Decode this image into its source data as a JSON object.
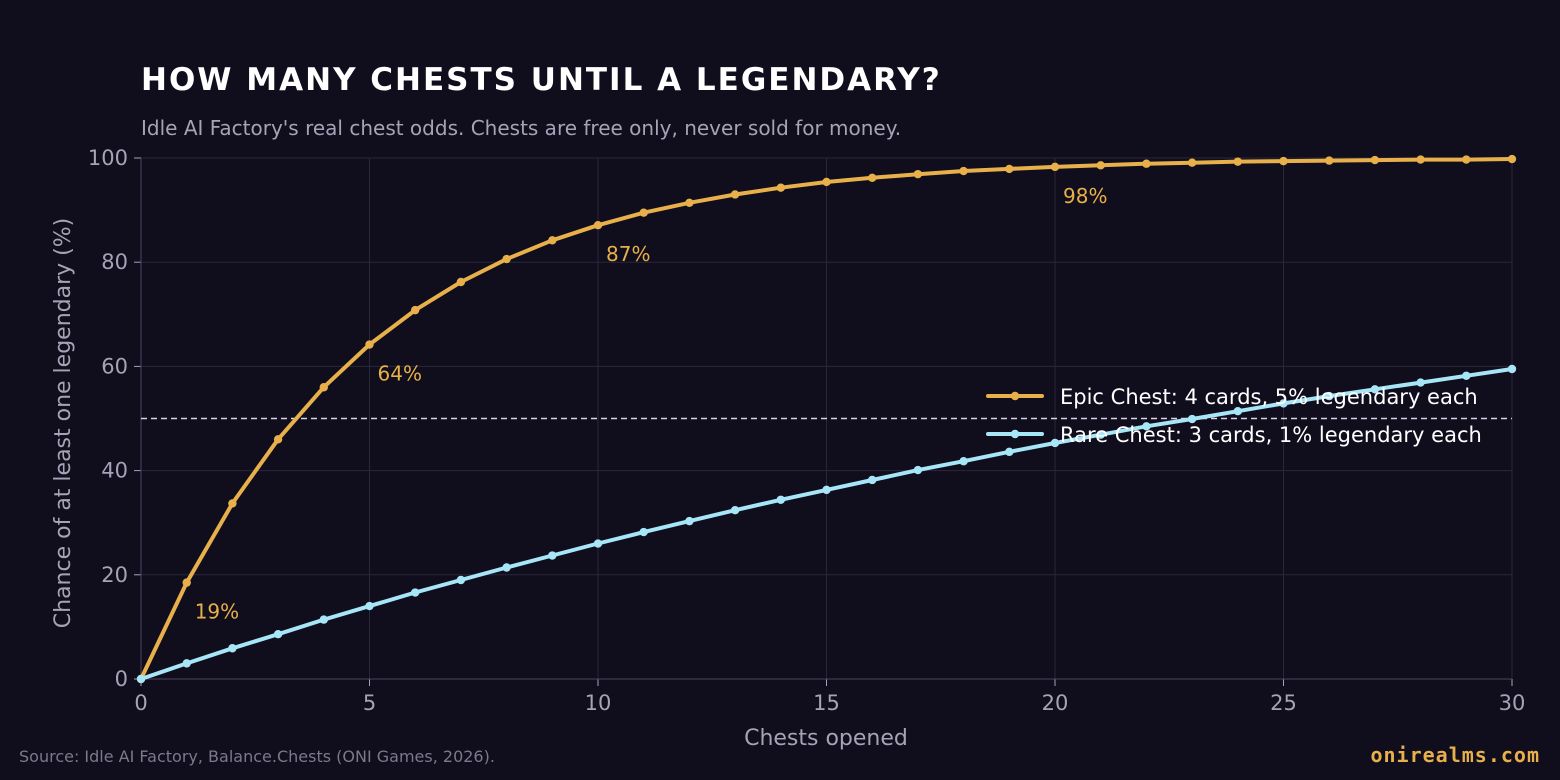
{
  "colors": {
    "background": "#100d1d",
    "epic": "#e8b04a",
    "rare": "#a7e6f7",
    "grid": "#2b273b",
    "text": "#a7a2b6"
  },
  "page": {
    "title": "HOW MANY CHESTS UNTIL A LEGENDARY?",
    "subtitle": "Idle AI Factory's real chest odds. Chests are free only, never sold for money.",
    "source": "Source: Idle AI Factory, Balance.Chests (ONI Games, 2026).",
    "brand": "onirealms.com"
  },
  "chart_data": {
    "type": "line",
    "xlabel": "Chests opened",
    "ylabel": "Chance of at least one legendary (%)",
    "xlim": [
      0,
      30
    ],
    "ylim": [
      0,
      100
    ],
    "xticks": [
      "0",
      "5",
      "10",
      "15",
      "20",
      "25",
      "30"
    ],
    "yticks": [
      "0",
      "20",
      "40",
      "60",
      "80",
      "100"
    ],
    "grid": true,
    "legend_position": "right",
    "reference_line": {
      "y": 50,
      "style": "dashed"
    },
    "x": [
      0,
      1,
      2,
      3,
      4,
      5,
      6,
      7,
      8,
      9,
      10,
      11,
      12,
      13,
      14,
      15,
      16,
      17,
      18,
      19,
      20,
      21,
      22,
      23,
      24,
      25,
      26,
      27,
      28,
      29,
      30
    ],
    "series": [
      {
        "name": "Epic Chest: 4 cards, 5% legendary each",
        "color": "#e8b04a",
        "values": [
          0,
          18.5,
          33.7,
          46.0,
          56.0,
          64.2,
          70.8,
          76.2,
          80.6,
          84.2,
          87.1,
          89.5,
          91.4,
          93.0,
          94.3,
          95.4,
          96.2,
          96.9,
          97.5,
          97.9,
          98.3,
          98.6,
          98.9,
          99.1,
          99.3,
          99.4,
          99.5,
          99.6,
          99.7,
          99.7,
          99.8
        ],
        "annotations": [
          {
            "x": 1,
            "y": 18.5,
            "label": "19%"
          },
          {
            "x": 5,
            "y": 64.2,
            "label": "64%"
          },
          {
            "x": 10,
            "y": 87.1,
            "label": "87%"
          },
          {
            "x": 20,
            "y": 98.3,
            "label": "98%"
          }
        ]
      },
      {
        "name": "Rare Chest: 3 cards, 1% legendary each",
        "color": "#a7e6f7",
        "values": [
          0,
          3.0,
          5.9,
          8.6,
          11.4,
          14.0,
          16.6,
          19.0,
          21.4,
          23.7,
          26.0,
          28.2,
          30.3,
          32.4,
          34.4,
          36.3,
          38.2,
          40.1,
          41.8,
          43.6,
          45.3,
          46.9,
          48.5,
          49.9,
          51.4,
          52.9,
          54.3,
          55.6,
          56.9,
          58.2,
          59.5
        ]
      }
    ]
  }
}
